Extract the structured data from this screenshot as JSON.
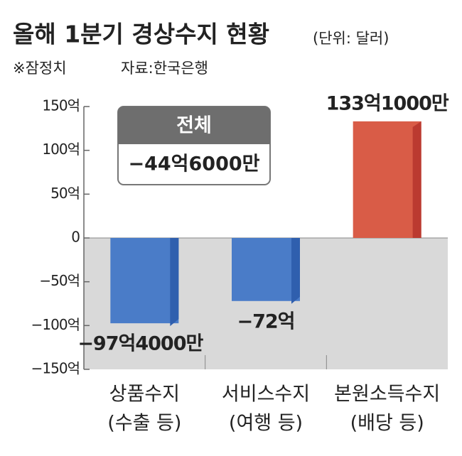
{
  "chart_data": {
    "type": "bar",
    "title": "올해 1분기 경상수지 현황",
    "subtitle": "(단위: 달러)",
    "note": "※잠정치",
    "source": "자료:한국은행",
    "categories": [
      "상품수지",
      "서비스수지",
      "본원소득수지"
    ],
    "category_sublabels": [
      "(수출 등)",
      "(여행 등)",
      "(배당 등)"
    ],
    "values": [
      -97.4,
      -72,
      133.1
    ],
    "value_labels": [
      "−97억4000만",
      "−72억",
      "133억1000만"
    ],
    "colors": [
      "#4a7cc8",
      "#4a7cc8",
      "#d95c47"
    ],
    "side_colors": [
      "#2f5fae",
      "#2f5fae",
      "#bb3a30"
    ],
    "ylim": [
      -150,
      150
    ],
    "yticks": [
      {
        "value": 150,
        "label": "150억"
      },
      {
        "value": 100,
        "label": "100억"
      },
      {
        "value": 50,
        "label": "50억"
      },
      0,
      {
        "value": -50,
        "label": "−50억"
      },
      {
        "value": -100,
        "label": "−100억"
      },
      {
        "value": -150,
        "label": "−150억"
      }
    ],
    "total": {
      "title": "전체",
      "value_label": "−44억6000만"
    }
  }
}
